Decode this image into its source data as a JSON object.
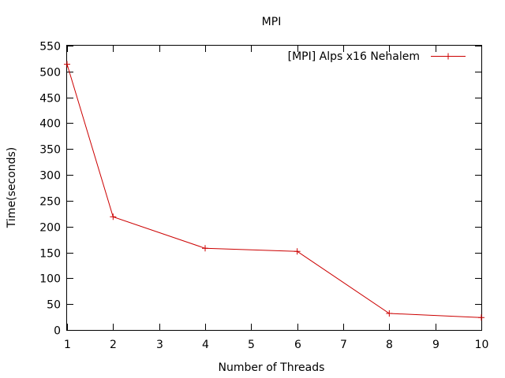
{
  "chart_data": {
    "type": "line",
    "title": "MPI",
    "xlabel": "Number of Threads",
    "ylabel": "Time(seconds)",
    "x_tick_labels": [
      "1",
      "2",
      "3",
      "4",
      "5",
      "6",
      "7",
      "8",
      "9",
      "10"
    ],
    "y_ticks": [
      0,
      50,
      100,
      150,
      200,
      250,
      300,
      350,
      400,
      450,
      500,
      550
    ],
    "ylim": [
      0,
      550
    ],
    "grid": false,
    "legend_position": "top-right",
    "series": [
      {
        "name": "[MPI] Alps x16 Nehalem",
        "color": "#cc0000",
        "marker": "plus",
        "points": [
          {
            "x": "1",
            "y": 514
          },
          {
            "x": "2",
            "y": 219
          },
          {
            "x": "4",
            "y": 158
          },
          {
            "x": "6",
            "y": 152
          },
          {
            "x": "8",
            "y": 32
          },
          {
            "x": "10",
            "y": 24
          }
        ]
      }
    ]
  }
}
